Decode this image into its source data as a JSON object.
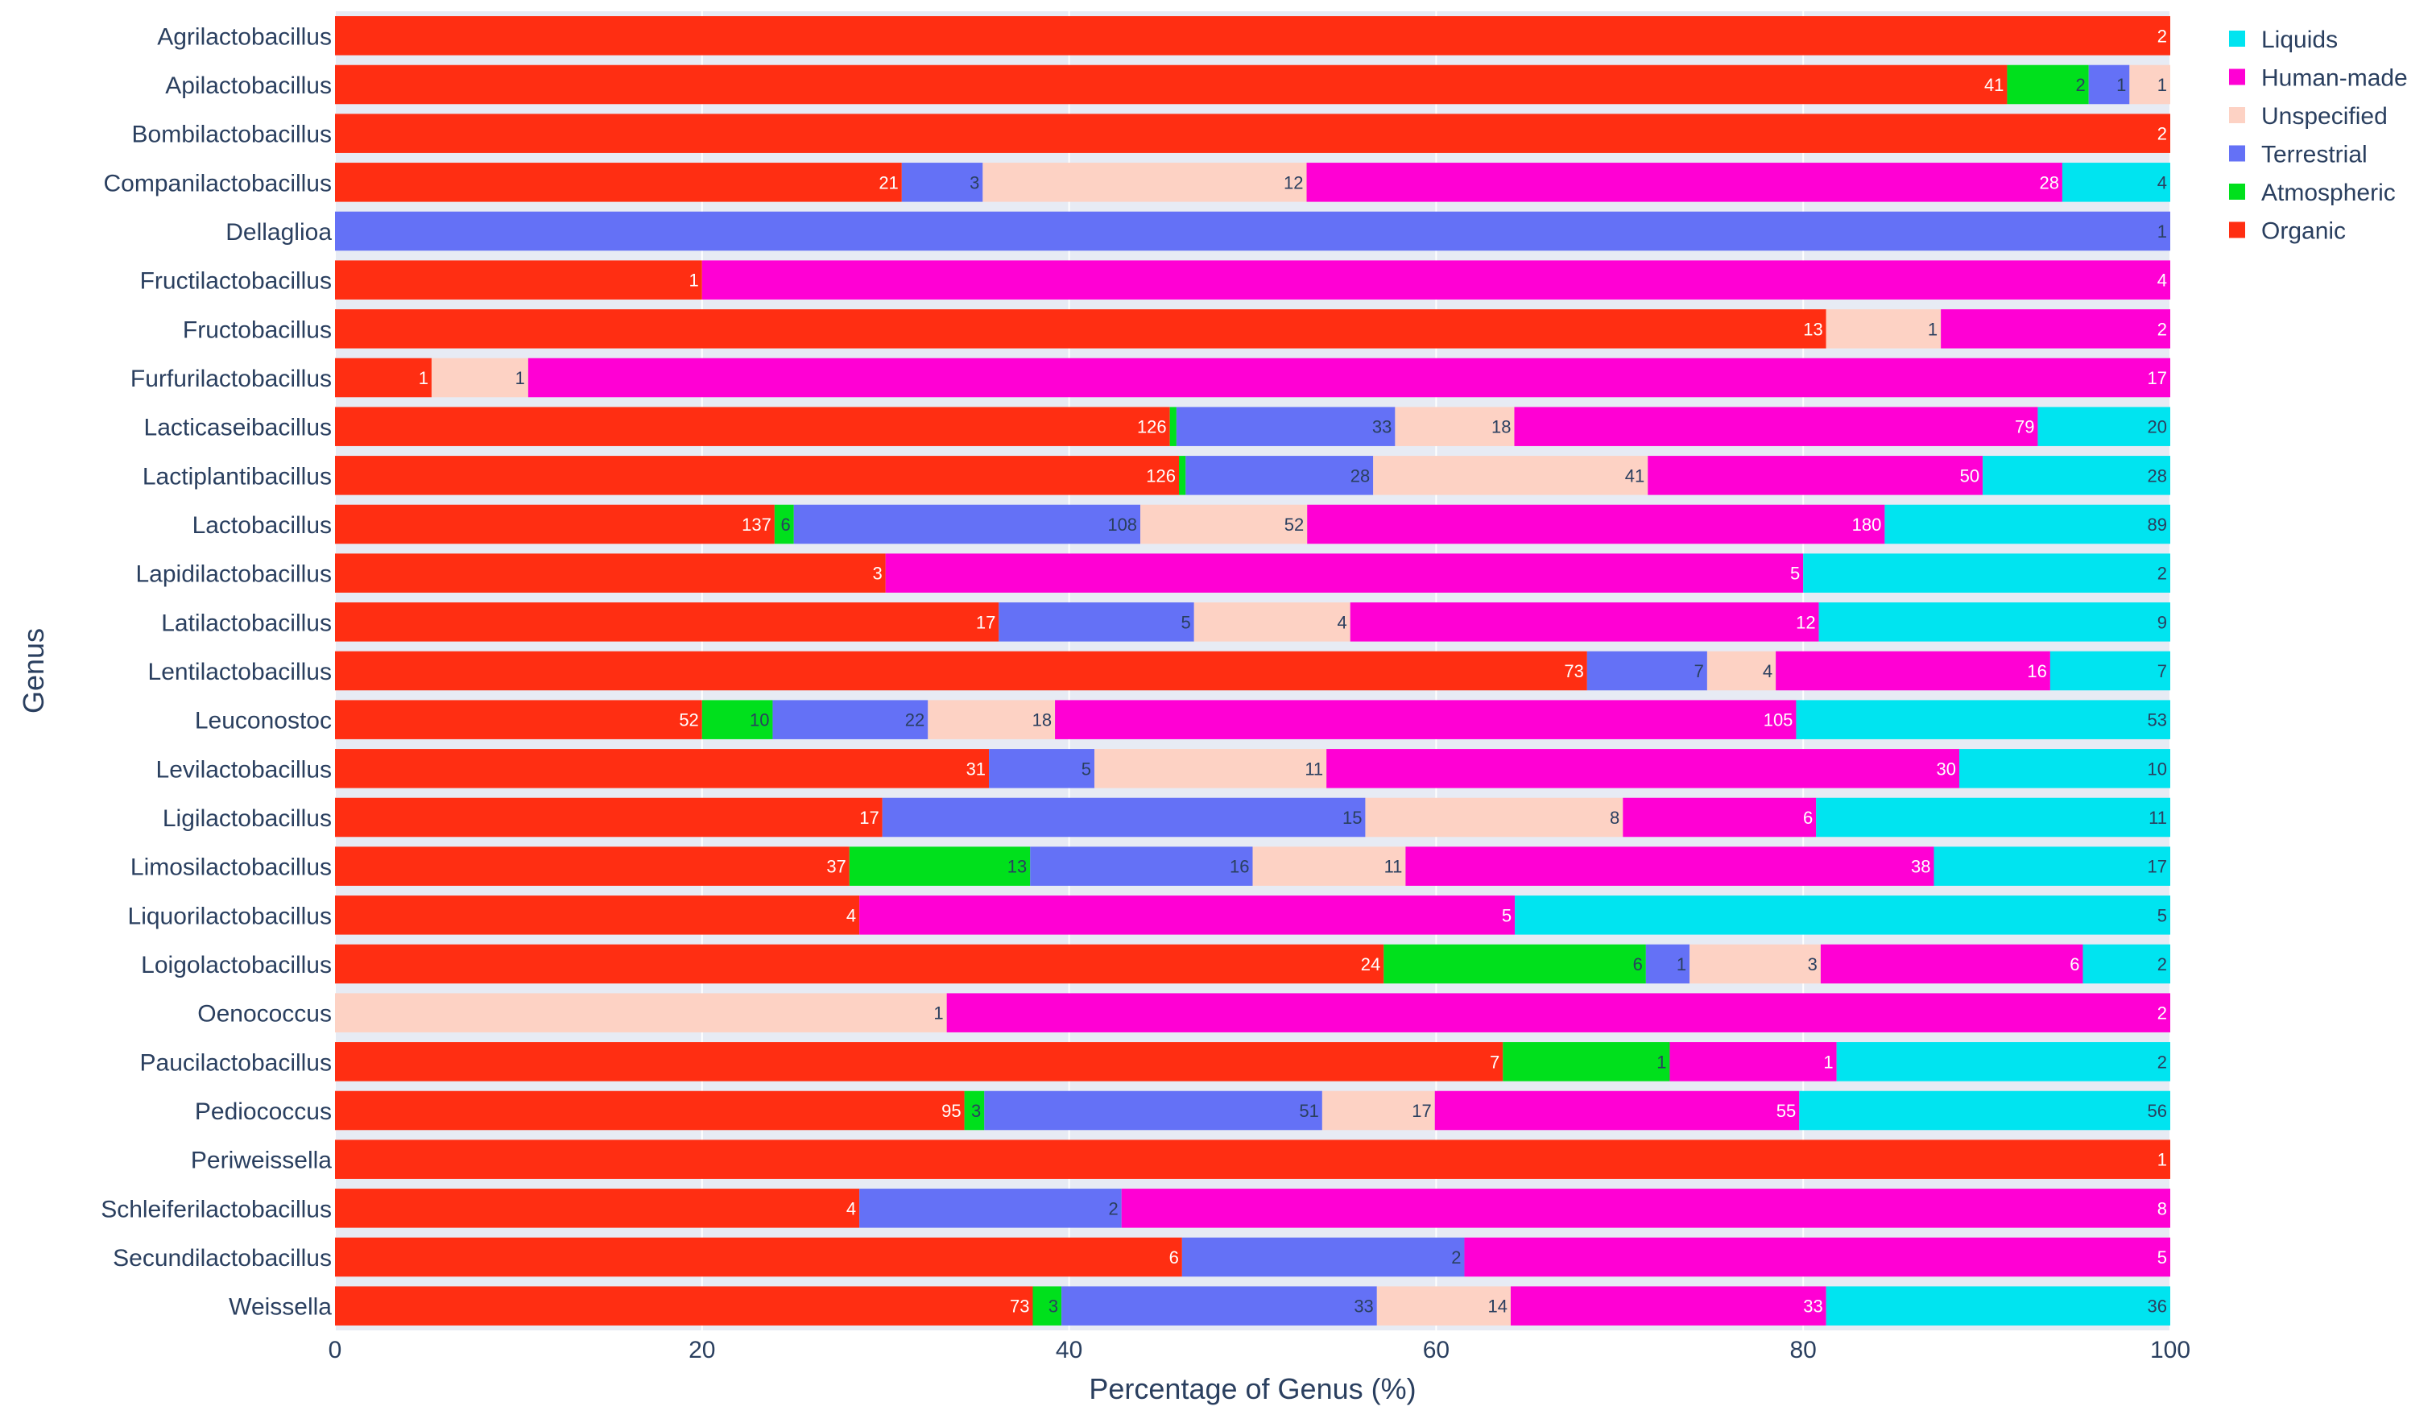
{
  "chart_data": {
    "type": "bar",
    "orientation": "horizontal",
    "barmode": "stack",
    "normalized": "percent",
    "title": "",
    "xlabel": "Percentage of Genus (%)",
    "ylabel": "Genus",
    "xlim": [
      0,
      100
    ],
    "xticks": [
      0,
      20,
      40,
      60,
      80,
      100
    ],
    "grid": true,
    "legend_position": "top-right",
    "legend_order": [
      "Liquids",
      "Human-made",
      "Unspecified",
      "Terrestrial",
      "Atmospheric",
      "Organic"
    ],
    "colors": {
      "Organic": "#ff2e12",
      "Atmospheric": "#00e01c",
      "Terrestrial": "#6471f6",
      "Unspecified": "#fdd2c4",
      "Human-made": "#ff00d4",
      "Liquids": "#00e4f0",
      "plot_bg": "#e7ebf4",
      "axis_text": "#2a3f5f",
      "light_text": "#ffffff",
      "dark_text": "#2a3f5f"
    },
    "categories": [
      "Agrilactobacillus",
      "Apilactobacillus",
      "Bombilactobacillus",
      "Companilactobacillus",
      "Dellaglioa",
      "Fructilactobacillus",
      "Fructobacillus",
      "Furfurilactobacillus",
      "Lacticaseibacillus",
      "Lactiplantibacillus",
      "Lactobacillus",
      "Lapidilactobacillus",
      "Latilactobacillus",
      "Lentilactobacillus",
      "Leuconostoc",
      "Levilactobacillus",
      "Ligilactobacillus",
      "Limosilactobacillus",
      "Liquorilactobacillus",
      "Loigolactobacillus",
      "Oenococcus",
      "Paucilactobacillus",
      "Pediococcus",
      "Periweissella",
      "Schleiferilactobacillus",
      "Secundilactobacillus",
      "Weissella"
    ],
    "series": [
      {
        "name": "Organic",
        "values": [
          2,
          41,
          2,
          21,
          0,
          1,
          13,
          1,
          126,
          126,
          137,
          3,
          17,
          73,
          52,
          31,
          17,
          37,
          4,
          24,
          0,
          7,
          95,
          1,
          4,
          6,
          73
        ]
      },
      {
        "name": "Atmospheric",
        "values": [
          0,
          2,
          0,
          0,
          0,
          0,
          0,
          0,
          1,
          1,
          6,
          0,
          0,
          0,
          10,
          0,
          0,
          13,
          0,
          6,
          0,
          1,
          3,
          0,
          0,
          0,
          3
        ]
      },
      {
        "name": "Terrestrial",
        "values": [
          0,
          1,
          0,
          3,
          1,
          0,
          0,
          0,
          33,
          28,
          108,
          0,
          5,
          7,
          22,
          5,
          15,
          16,
          0,
          1,
          0,
          0,
          51,
          0,
          2,
          2,
          33
        ]
      },
      {
        "name": "Unspecified",
        "values": [
          0,
          1,
          0,
          12,
          0,
          0,
          1,
          1,
          18,
          41,
          52,
          0,
          4,
          4,
          18,
          11,
          8,
          11,
          0,
          3,
          1,
          0,
          17,
          0,
          0,
          0,
          14
        ]
      },
      {
        "name": "Human-made",
        "values": [
          0,
          0,
          0,
          28,
          0,
          4,
          2,
          17,
          79,
          50,
          180,
          5,
          12,
          16,
          105,
          30,
          6,
          38,
          5,
          6,
          2,
          1,
          55,
          0,
          8,
          5,
          33
        ]
      },
      {
        "name": "Liquids",
        "values": [
          0,
          0,
          0,
          4,
          0,
          0,
          0,
          0,
          20,
          28,
          89,
          2,
          9,
          7,
          53,
          10,
          11,
          17,
          5,
          2,
          0,
          2,
          56,
          0,
          0,
          0,
          36
        ]
      }
    ],
    "shown_labels": [
      [
        true,
        false,
        false,
        false,
        false,
        false
      ],
      [
        true,
        true,
        true,
        true,
        false,
        false
      ],
      [
        true,
        false,
        false,
        false,
        false,
        false
      ],
      [
        true,
        false,
        true,
        true,
        true,
        true
      ],
      [
        false,
        false,
        true,
        false,
        false,
        false
      ],
      [
        true,
        false,
        false,
        false,
        true,
        false
      ],
      [
        true,
        false,
        false,
        true,
        true,
        false
      ],
      [
        true,
        false,
        false,
        true,
        true,
        false
      ],
      [
        true,
        false,
        true,
        true,
        true,
        true
      ],
      [
        true,
        false,
        true,
        true,
        true,
        true
      ],
      [
        true,
        true,
        true,
        true,
        true,
        true
      ],
      [
        true,
        false,
        false,
        false,
        true,
        true
      ],
      [
        true,
        false,
        true,
        true,
        true,
        true
      ],
      [
        true,
        false,
        true,
        true,
        true,
        true
      ],
      [
        true,
        true,
        true,
        true,
        true,
        true
      ],
      [
        true,
        false,
        true,
        true,
        true,
        true
      ],
      [
        true,
        false,
        true,
        true,
        true,
        true
      ],
      [
        true,
        true,
        true,
        true,
        true,
        true
      ],
      [
        true,
        false,
        false,
        false,
        true,
        true
      ],
      [
        true,
        true,
        true,
        true,
        true,
        true
      ],
      [
        false,
        false,
        false,
        true,
        true,
        false
      ],
      [
        true,
        true,
        false,
        false,
        true,
        true
      ],
      [
        true,
        true,
        true,
        true,
        true,
        true
      ],
      [
        true,
        false,
        false,
        false,
        false,
        false
      ],
      [
        true,
        false,
        true,
        false,
        true,
        false
      ],
      [
        true,
        false,
        true,
        false,
        true,
        false
      ],
      [
        true,
        true,
        true,
        true,
        true,
        true
      ]
    ]
  }
}
